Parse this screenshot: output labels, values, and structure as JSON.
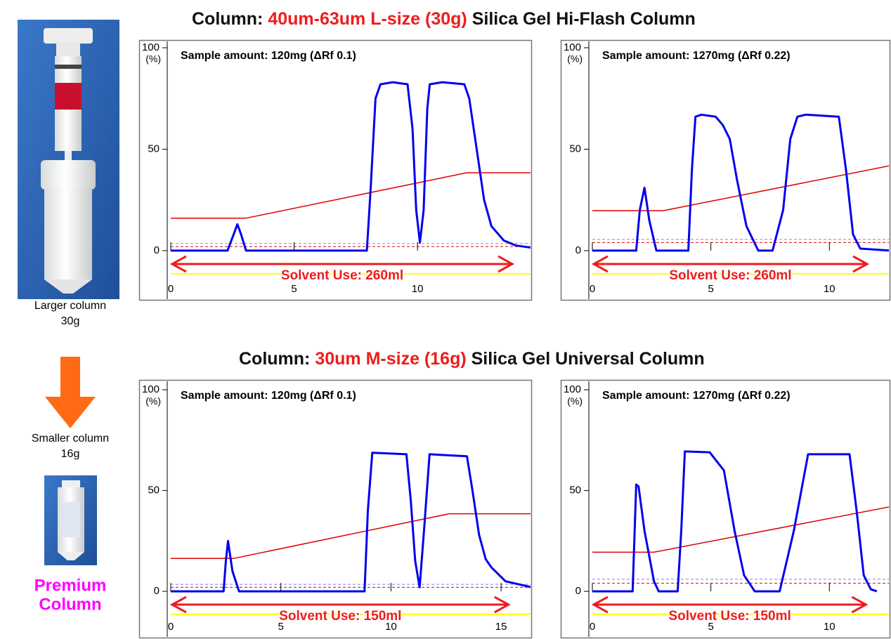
{
  "headings": [
    {
      "prefix": "Column: ",
      "highlight": "40um-63um L-size (30g)",
      "suffix": " Silica Gel Hi-Flash Column"
    },
    {
      "prefix": "Column: ",
      "highlight": "30um M-size (16g)",
      "suffix": " Silica Gel Universal Column"
    }
  ],
  "side": {
    "large_label": [
      "Larger column",
      "30g"
    ],
    "small_label": [
      "Smaller column",
      "16g"
    ],
    "badge": [
      "Premium",
      "Column"
    ]
  },
  "chart_data": [
    {
      "type": "line",
      "title": "Sample amount: 120mg (ΔRf  0.1)",
      "yunit": "(%)",
      "xlim": [
        0,
        14.64
      ],
      "xticks": [
        0,
        5,
        10
      ],
      "ylim": [
        -24.6,
        103.8
      ],
      "yticks": [
        0,
        50,
        100
      ],
      "series": [
        {
          "color": "#ffff00",
          "dash": false,
          "width": 2,
          "x": [
            0,
            14.64
          ],
          "values": [
            -11.4,
            -11.4
          ]
        },
        {
          "color": "#8080ff",
          "dash": true,
          "width": 1,
          "x": [
            0,
            14.64
          ],
          "values": [
            3.5,
            3.5
          ]
        },
        {
          "color": "#e00000",
          "dash": true,
          "width": 1,
          "x": [
            0,
            14.64
          ],
          "values": [
            2,
            2
          ]
        },
        {
          "color": "#dd0000",
          "dash": false,
          "width": 1.5,
          "x": [
            0,
            3.05,
            12.0,
            14.64
          ],
          "values": [
            16,
            16,
            38.4,
            38.4
          ]
        },
        {
          "color": "#0000ee",
          "dash": false,
          "width": 3,
          "x": [
            0,
            2.3,
            2.55,
            2.7,
            2.85,
            3.05,
            7.95,
            8.1,
            8.3,
            8.5,
            9.0,
            9.6,
            9.8,
            9.95,
            10.1,
            10.25,
            10.4,
            10.5,
            11.0,
            11.9,
            12.1,
            12.4,
            12.7,
            13.0,
            13.5,
            14.0,
            14.6
          ],
          "values": [
            0,
            0,
            8,
            13,
            8,
            0,
            0,
            30,
            75,
            82,
            83,
            82,
            60,
            20,
            4,
            20,
            70,
            82,
            83,
            82,
            75,
            50,
            25,
            12,
            5,
            2.5,
            1.5
          ]
        }
      ],
      "annotation": {
        "text": "Solvent Use: 260ml",
        "x": [
          0,
          13.9
        ],
        "y": -6.6
      }
    },
    {
      "type": "line",
      "title": "Sample amount: 1270mg (ΔRf  0.22)",
      "yunit": "(%)",
      "xlim": [
        0,
        12.57
      ],
      "xticks": [
        0,
        5,
        10
      ],
      "ylim": [
        -24.6,
        103.8
      ],
      "yticks": [
        0,
        50,
        100
      ],
      "series": [
        {
          "color": "#ffff00",
          "dash": false,
          "width": 2,
          "x": [
            0,
            12.57
          ],
          "values": [
            -11.4,
            -11.4
          ]
        },
        {
          "color": "#8080ff",
          "dash": true,
          "width": 1,
          "x": [
            0,
            12.57
          ],
          "values": [
            5.5,
            5.5
          ]
        },
        {
          "color": "#e00000",
          "dash": true,
          "width": 1,
          "x": [
            0,
            12.57
          ],
          "values": [
            4,
            4
          ]
        },
        {
          "color": "#dd0000",
          "dash": false,
          "width": 1.5,
          "x": [
            0,
            3.0,
            12.57
          ],
          "values": [
            19.7,
            19.7,
            41.9
          ]
        },
        {
          "color": "#0000ee",
          "dash": false,
          "width": 3,
          "x": [
            0,
            1.85,
            2.0,
            2.2,
            2.4,
            2.7,
            4.05,
            4.2,
            4.35,
            4.6,
            5.2,
            5.5,
            5.8,
            6.1,
            6.5,
            7.0,
            7.6,
            8.05,
            8.35,
            8.65,
            9.0,
            10.4,
            10.7,
            11.0,
            11.3,
            12.57
          ],
          "values": [
            0,
            0,
            20,
            31,
            15,
            0,
            0,
            40,
            66,
            67,
            66,
            62,
            55,
            35,
            12,
            0,
            0,
            20,
            55,
            66,
            67,
            66,
            40,
            8,
            1,
            0
          ]
        }
      ],
      "annotation": {
        "text": "Solvent Use: 260ml",
        "x": [
          0,
          11.65
        ],
        "y": -6.6
      }
    },
    {
      "type": "line",
      "title": "Sample amount: 120mg (ΔRf  0.1)",
      "yunit": "(%)",
      "xlim": [
        0,
        16.4
      ],
      "xticks": [
        0,
        5,
        10,
        15
      ],
      "ylim": [
        -23.3,
        104.9
      ],
      "yticks": [
        0,
        50,
        100
      ],
      "series": [
        {
          "color": "#ffff00",
          "dash": false,
          "width": 2,
          "x": [
            0,
            16.4
          ],
          "values": [
            -11.4,
            -11.4
          ]
        },
        {
          "color": "#8080ff",
          "dash": true,
          "width": 1,
          "x": [
            0,
            16.4
          ],
          "values": [
            3.5,
            3.5
          ]
        },
        {
          "color": "#e00000",
          "dash": true,
          "width": 1,
          "x": [
            0,
            16.4
          ],
          "values": [
            2,
            2
          ]
        },
        {
          "color": "#dd0000",
          "dash": false,
          "width": 1.5,
          "x": [
            0,
            2.85,
            12.65,
            16.4
          ],
          "values": [
            16.3,
            16.3,
            38.5,
            38.5
          ]
        },
        {
          "color": "#0000ee",
          "dash": false,
          "width": 3,
          "x": [
            0,
            2.4,
            2.5,
            2.6,
            2.8,
            3.1,
            8.8,
            8.95,
            9.15,
            10.7,
            10.9,
            11.1,
            11.3,
            11.5,
            11.75,
            13.45,
            13.7,
            14.0,
            14.3,
            14.55,
            15.2,
            16.4
          ],
          "values": [
            0,
            0,
            15,
            25,
            10,
            0,
            0,
            40,
            68.75,
            68,
            45,
            15,
            2,
            30,
            68,
            67,
            50,
            28,
            16,
            12,
            5,
            2
          ]
        }
      ],
      "annotation": {
        "text": "Solvent Use: 150ml",
        "x": [
          0,
          15.4
        ],
        "y": -6.6
      }
    },
    {
      "type": "line",
      "title": "Sample amount: 1270mg (ΔRf  0.22)",
      "yunit": "(%)",
      "xlim": [
        0,
        12.57
      ],
      "xticks": [
        0,
        5,
        10
      ],
      "ylim": [
        -23.3,
        104.9
      ],
      "yticks": [
        0,
        50,
        100
      ],
      "series": [
        {
          "color": "#ffff00",
          "dash": false,
          "width": 2,
          "x": [
            0,
            12.57
          ],
          "values": [
            -11.4,
            -11.4
          ]
        },
        {
          "color": "#8080ff",
          "dash": true,
          "width": 1,
          "x": [
            0,
            12.57
          ],
          "values": [
            6,
            6
          ]
        },
        {
          "color": "#e00000",
          "dash": true,
          "width": 1,
          "x": [
            0,
            12.57
          ],
          "values": [
            4,
            4
          ]
        },
        {
          "color": "#dd0000",
          "dash": false,
          "width": 1.5,
          "x": [
            0,
            2.6,
            12.57
          ],
          "values": [
            19.4,
            19.4,
            42
          ]
        },
        {
          "color": "#0000ee",
          "dash": false,
          "width": 3,
          "x": [
            0,
            1.7,
            1.85,
            1.95,
            2.2,
            2.6,
            2.8,
            3.6,
            3.75,
            3.9,
            4.95,
            5.55,
            6.0,
            6.4,
            6.85,
            7.9,
            8.5,
            9.1,
            10.85,
            11.15,
            11.45,
            11.75,
            12.0
          ],
          "values": [
            0,
            0,
            53,
            52,
            30,
            5,
            0,
            0,
            30,
            69.4,
            69,
            60,
            30,
            8,
            0,
            0,
            30,
            68,
            68,
            40,
            8,
            1,
            0
          ]
        }
      ],
      "annotation": {
        "text": "Solvent Use: 150ml",
        "x": [
          0,
          11.6
        ],
        "y": -6.6
      }
    }
  ]
}
